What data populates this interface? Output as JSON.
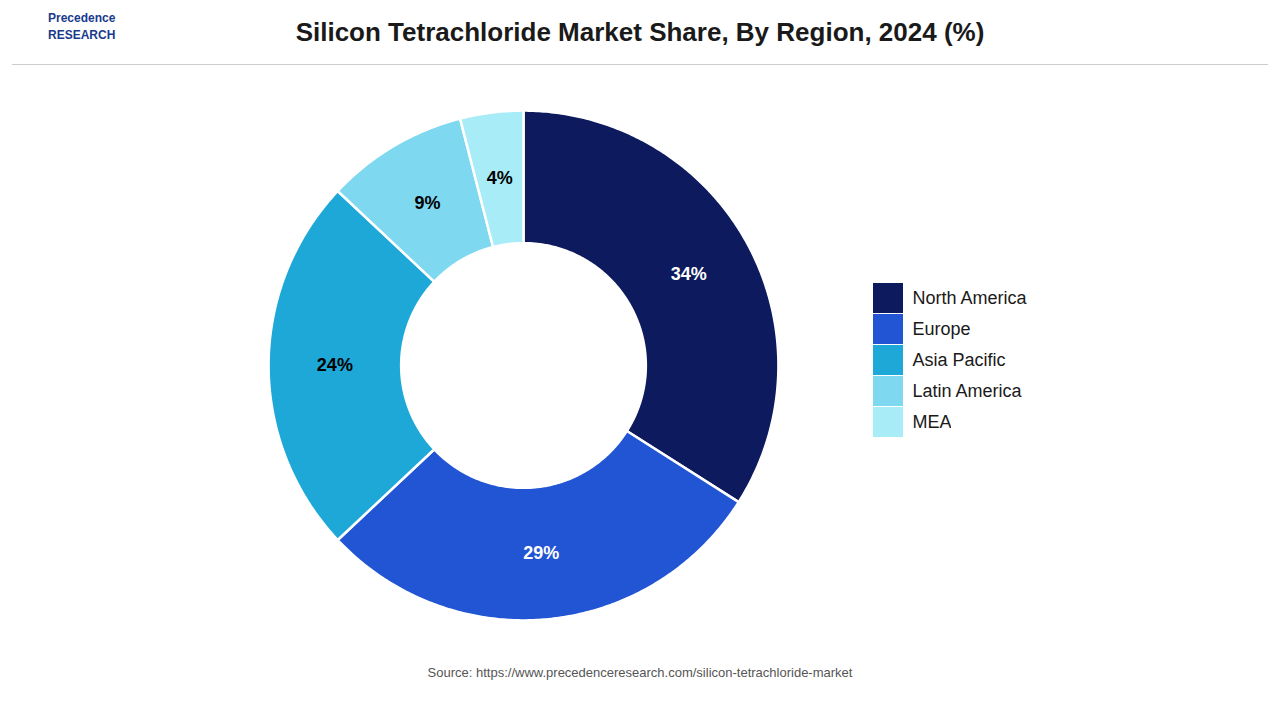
{
  "chart_data": {
    "type": "pie",
    "title": "Silicon Tetrachloride Market Share, By Region, 2024 (%)",
    "categories": [
      "North America",
      "Europe",
      "Asia Pacific",
      "Latin America",
      "MEA"
    ],
    "values": [
      34,
      29,
      24,
      9,
      4
    ],
    "value_labels": [
      "34%",
      "29%",
      "24%",
      "9%",
      "4%"
    ],
    "colors": [
      "#0d1b5e",
      "#2255d4",
      "#1da8d8",
      "#7dd8f0",
      "#a8ecf8"
    ],
    "data_labels": true,
    "legend": "right",
    "annotations": [
      "Precedence\nRESEARCH",
      "Source: https://www.precedenceresearch.com/silicon-tetrachloride-market"
    ]
  }
}
